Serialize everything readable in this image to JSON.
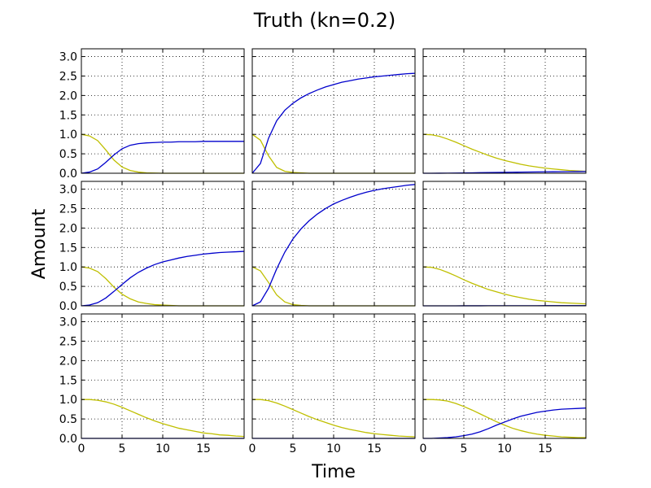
{
  "figure": {
    "title": "Truth (kn=0.2)",
    "xlabel": "Time",
    "ylabel": "Amount"
  },
  "chart_data": {
    "type": "line",
    "layout": "3x3 grid of subplots sharing x and y axes",
    "xlim": [
      0,
      20
    ],
    "ylim": [
      0,
      3.2
    ],
    "xticks": [
      0,
      5,
      10,
      15
    ],
    "yticks": [
      0.0,
      0.5,
      1.0,
      1.5,
      2.0,
      2.5,
      3.0
    ],
    "xtick_labels": [
      "0",
      "5",
      "10",
      "15"
    ],
    "ytick_labels": [
      "0.0",
      "0.5",
      "1.0",
      "1.5",
      "2.0",
      "2.5",
      "3.0"
    ],
    "grid": true,
    "series_colors": [
      "#bfbf00",
      "#0000cc"
    ],
    "x": [
      0,
      1,
      2,
      3,
      4,
      5,
      6,
      7,
      8,
      9,
      10,
      11,
      12,
      13,
      14,
      15,
      16,
      17,
      18,
      19,
      20
    ],
    "panels": [
      {
        "row": 0,
        "col": 0,
        "series": [
          {
            "color": "#bfbf00",
            "values": [
              1.0,
              0.96,
              0.84,
              0.6,
              0.34,
              0.16,
              0.07,
              0.03,
              0.01,
              0.005,
              0.0,
              0.0,
              0.0,
              0.0,
              0.0,
              0.0,
              0.0,
              0.0,
              0.0,
              0.0,
              0.0
            ]
          },
          {
            "color": "#0000cc",
            "values": [
              0.0,
              0.03,
              0.11,
              0.28,
              0.47,
              0.63,
              0.72,
              0.76,
              0.78,
              0.79,
              0.8,
              0.8,
              0.81,
              0.81,
              0.81,
              0.82,
              0.82,
              0.82,
              0.82,
              0.82,
              0.82
            ]
          }
        ]
      },
      {
        "row": 0,
        "col": 1,
        "series": [
          {
            "color": "#bfbf00",
            "values": [
              1.0,
              0.85,
              0.45,
              0.15,
              0.05,
              0.02,
              0.01,
              0.0,
              0.0,
              0.0,
              0.0,
              0.0,
              0.0,
              0.0,
              0.0,
              0.0,
              0.0,
              0.0,
              0.0,
              0.0,
              0.0
            ]
          },
          {
            "color": "#0000cc",
            "values": [
              0.0,
              0.25,
              0.9,
              1.35,
              1.62,
              1.8,
              1.94,
              2.05,
              2.14,
              2.22,
              2.28,
              2.34,
              2.38,
              2.42,
              2.45,
              2.48,
              2.5,
              2.52,
              2.54,
              2.56,
              2.57
            ]
          }
        ]
      },
      {
        "row": 0,
        "col": 2,
        "series": [
          {
            "color": "#bfbf00",
            "values": [
              1.0,
              0.99,
              0.95,
              0.88,
              0.8,
              0.71,
              0.62,
              0.54,
              0.46,
              0.39,
              0.33,
              0.28,
              0.23,
              0.19,
              0.16,
              0.13,
              0.11,
              0.09,
              0.07,
              0.06,
              0.05
            ]
          },
          {
            "color": "#0000cc",
            "values": [
              0.0,
              0.0,
              0.001,
              0.003,
              0.005,
              0.008,
              0.011,
              0.014,
              0.017,
              0.02,
              0.023,
              0.026,
              0.029,
              0.031,
              0.034,
              0.036,
              0.038,
              0.04,
              0.042,
              0.043,
              0.045
            ]
          }
        ]
      },
      {
        "row": 1,
        "col": 0,
        "series": [
          {
            "color": "#bfbf00",
            "values": [
              1.0,
              0.97,
              0.88,
              0.7,
              0.48,
              0.3,
              0.18,
              0.1,
              0.06,
              0.03,
              0.02,
              0.01,
              0.0,
              0.0,
              0.0,
              0.0,
              0.0,
              0.0,
              0.0,
              0.0,
              0.0
            ]
          },
          {
            "color": "#0000cc",
            "values": [
              0.0,
              0.02,
              0.08,
              0.2,
              0.37,
              0.55,
              0.72,
              0.86,
              0.97,
              1.06,
              1.13,
              1.18,
              1.23,
              1.27,
              1.3,
              1.33,
              1.35,
              1.37,
              1.38,
              1.39,
              1.4
            ]
          }
        ]
      },
      {
        "row": 1,
        "col": 1,
        "series": [
          {
            "color": "#bfbf00",
            "values": [
              1.0,
              0.9,
              0.6,
              0.28,
              0.1,
              0.03,
              0.01,
              0.0,
              0.0,
              0.0,
              0.0,
              0.0,
              0.0,
              0.0,
              0.0,
              0.0,
              0.0,
              0.0,
              0.0,
              0.0,
              0.0
            ]
          },
          {
            "color": "#0000cc",
            "values": [
              0.0,
              0.1,
              0.45,
              0.95,
              1.38,
              1.72,
              1.98,
              2.19,
              2.36,
              2.5,
              2.62,
              2.71,
              2.79,
              2.86,
              2.92,
              2.97,
              3.01,
              3.04,
              3.07,
              3.1,
              3.12
            ]
          }
        ]
      },
      {
        "row": 1,
        "col": 2,
        "series": [
          {
            "color": "#bfbf00",
            "values": [
              1.0,
              0.99,
              0.94,
              0.86,
              0.77,
              0.67,
              0.58,
              0.5,
              0.42,
              0.36,
              0.3,
              0.25,
              0.21,
              0.17,
              0.14,
              0.12,
              0.1,
              0.08,
              0.07,
              0.06,
              0.05
            ]
          },
          {
            "color": "#0000cc",
            "values": [
              0.0,
              0.0,
              0.0,
              0.0,
              0.0,
              0.001,
              0.001,
              0.001,
              0.002,
              0.002,
              0.002,
              0.003,
              0.003,
              0.003,
              0.003,
              0.004,
              0.004,
              0.004,
              0.004,
              0.004,
              0.004
            ]
          }
        ]
      },
      {
        "row": 2,
        "col": 0,
        "series": [
          {
            "color": "#bfbf00",
            "values": [
              1.0,
              1.0,
              0.98,
              0.94,
              0.88,
              0.8,
              0.71,
              0.62,
              0.53,
              0.45,
              0.38,
              0.32,
              0.26,
              0.22,
              0.18,
              0.14,
              0.12,
              0.09,
              0.08,
              0.06,
              0.05
            ]
          },
          {
            "color": "#0000cc",
            "values": [
              0.0,
              0.0,
              0.0,
              0.0,
              0.0,
              0.0,
              0.0,
              0.0,
              0.0,
              0.0,
              0.0,
              0.0,
              0.0,
              0.0,
              0.0,
              0.0,
              0.0,
              0.0,
              0.0,
              0.0,
              0.0
            ]
          }
        ]
      },
      {
        "row": 2,
        "col": 1,
        "series": [
          {
            "color": "#bfbf00",
            "values": [
              1.0,
              1.0,
              0.97,
              0.91,
              0.83,
              0.74,
              0.65,
              0.56,
              0.48,
              0.41,
              0.34,
              0.28,
              0.23,
              0.19,
              0.15,
              0.12,
              0.1,
              0.08,
              0.06,
              0.05,
              0.04
            ]
          },
          {
            "color": "#0000cc",
            "values": [
              0.0,
              0.0,
              0.0,
              0.0,
              0.0,
              0.0,
              0.0,
              0.0,
              0.0,
              0.0,
              0.0,
              0.0,
              0.0,
              0.0,
              0.0,
              0.0,
              0.0,
              0.0,
              0.0,
              0.0,
              0.0
            ]
          }
        ]
      },
      {
        "row": 2,
        "col": 2,
        "series": [
          {
            "color": "#bfbf00",
            "values": [
              1.0,
              1.0,
              0.99,
              0.96,
              0.9,
              0.82,
              0.73,
              0.63,
              0.53,
              0.43,
              0.34,
              0.26,
              0.2,
              0.15,
              0.11,
              0.08,
              0.06,
              0.04,
              0.03,
              0.02,
              0.02
            ]
          },
          {
            "color": "#0000cc",
            "values": [
              0.0,
              0.0,
              0.01,
              0.02,
              0.04,
              0.07,
              0.11,
              0.17,
              0.25,
              0.34,
              0.42,
              0.5,
              0.57,
              0.62,
              0.67,
              0.7,
              0.73,
              0.75,
              0.76,
              0.77,
              0.78
            ]
          }
        ]
      }
    ]
  }
}
